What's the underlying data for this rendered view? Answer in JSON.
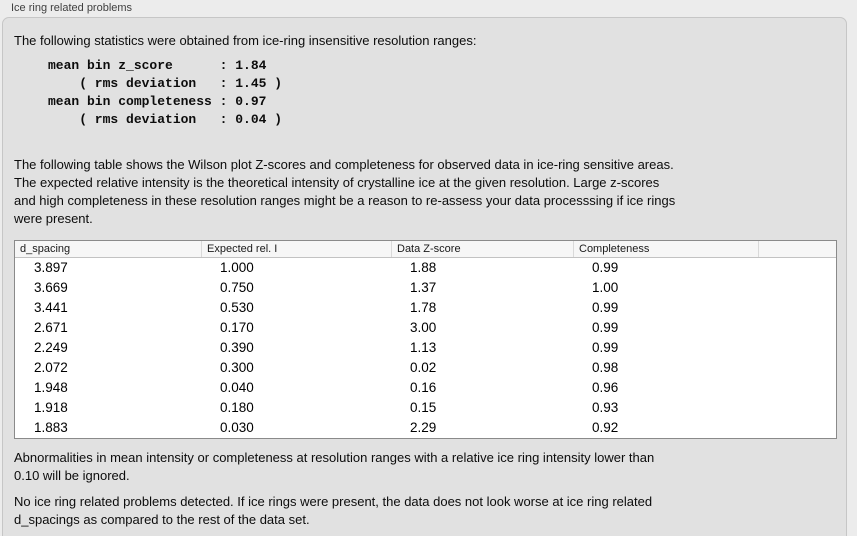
{
  "panel": {
    "title": "Ice ring related problems"
  },
  "intro": "The following statistics were obtained from ice-ring insensitive resolution ranges:",
  "stats_block": "mean bin z_score      : 1.84\n    ( rms deviation   : 1.45 )\nmean bin completeness : 0.97\n    ( rms deviation   : 0.04 )",
  "stats": {
    "mean_bin_z_score": "1.84",
    "z_score_rms_deviation": "1.45",
    "mean_bin_completeness": "0.97",
    "completeness_rms_deviation": "0.04"
  },
  "table_intro": "The following table shows the Wilson plot Z-scores and completeness for observed data in ice-ring sensitive areas.\nThe expected relative intensity is the theoretical intensity of crystalline ice at the given resolution. Large z-scores\nand high completeness in these resolution ranges might be a reason to re-assess your data processsing if ice rings\nwere present.",
  "table": {
    "headers": [
      "d_spacing",
      "Expected rel. I",
      "Data Z-score",
      "Completeness",
      ""
    ],
    "rows": [
      [
        "3.897",
        "1.000",
        "1.88",
        "0.99"
      ],
      [
        "3.669",
        "0.750",
        "1.37",
        "1.00"
      ],
      [
        "3.441",
        "0.530",
        "1.78",
        "0.99"
      ],
      [
        "2.671",
        "0.170",
        "3.00",
        "0.99"
      ],
      [
        "2.249",
        "0.390",
        "1.13",
        "0.99"
      ],
      [
        "2.072",
        "0.300",
        "0.02",
        "0.98"
      ],
      [
        "1.948",
        "0.040",
        "0.16",
        "0.96"
      ],
      [
        "1.918",
        "0.180",
        "0.15",
        "0.93"
      ],
      [
        "1.883",
        "0.030",
        "2.29",
        "0.92"
      ]
    ]
  },
  "note_ignore": "Abnormalities in mean intensity or completeness at resolution ranges with a relative ice ring intensity lower than\n0.10 will be ignored.",
  "conclusion": "No ice ring related problems detected. If ice rings were present, the data does not look worse at ice ring related\nd_spacings as compared to the rest of the data set.",
  "colors": {
    "window_bg": "#ececec",
    "panel_bg": "#e1e1e1",
    "table_header_bg": "#f6f6f6",
    "table_body_bg": "#ffffff",
    "table_border": "#8a8a8a"
  }
}
